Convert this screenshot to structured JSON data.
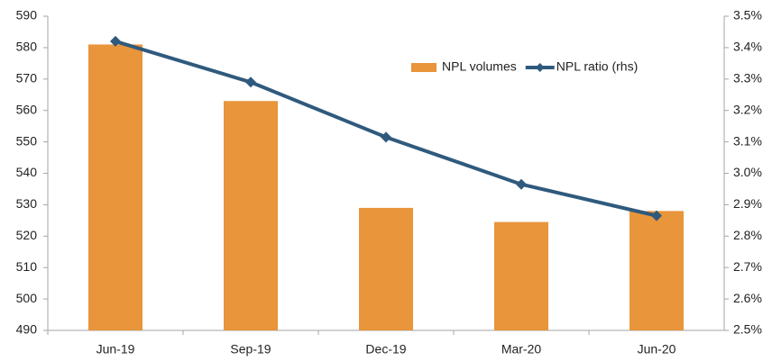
{
  "chart_data": {
    "type": "bar",
    "categories": [
      "Jun-19",
      "Sep-19",
      "Dec-19",
      "Mar-20",
      "Jun-20"
    ],
    "series": [
      {
        "name": "NPL volumes",
        "type": "bar",
        "color": "#e8953b",
        "values": [
          581,
          563,
          529,
          524.5,
          528
        ]
      },
      {
        "name": "NPL ratio (rhs)",
        "type": "line",
        "axis": "y2",
        "color": "#2f5a7d",
        "values": [
          3.42,
          3.29,
          3.115,
          2.965,
          2.865
        ]
      }
    ],
    "ylim": [
      490,
      590
    ],
    "yticks": [
      490,
      500,
      510,
      520,
      530,
      540,
      550,
      560,
      570,
      580,
      590
    ],
    "y2lim": [
      2.5,
      3.5
    ],
    "y2ticks": [
      {
        "value": 2.5,
        "label": "2.5%"
      },
      {
        "value": 2.6,
        "label": "2.6%"
      },
      {
        "value": 2.7,
        "label": "2.7%"
      },
      {
        "value": 2.8,
        "label": "2.8%"
      },
      {
        "value": 2.9,
        "label": "2.9%"
      },
      {
        "value": 3.0,
        "label": "3.0%"
      },
      {
        "value": 3.1,
        "label": "3.1%"
      },
      {
        "value": 3.2,
        "label": "3.2%"
      },
      {
        "value": 3.3,
        "label": "3.3%"
      },
      {
        "value": 3.4,
        "label": "3.4%"
      },
      {
        "value": 3.5,
        "label": "3.5%"
      }
    ],
    "grid": false,
    "legend": "upper right"
  }
}
